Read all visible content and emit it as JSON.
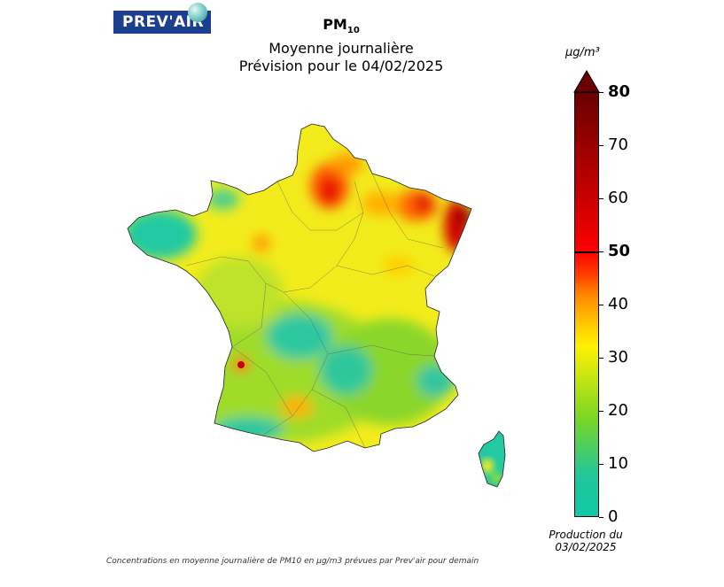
{
  "header": {
    "logo_text": "PREV'AIR",
    "pollutant": "PM",
    "pollutant_sub": "10",
    "subtitle": "Moyenne journalière",
    "forecast": "Prévision pour le 04/02/2025"
  },
  "legend": {
    "unit": "μg/m³",
    "ticks": [
      "0",
      "10",
      "20",
      "30",
      "40",
      "50",
      "60",
      "70",
      "80"
    ],
    "emphasized": [
      "50",
      "80"
    ],
    "range": [
      0,
      80
    ],
    "colors": {
      "low": "#11c8a8",
      "mid_low": "#7ad624",
      "mid": "#fff200",
      "mid_high": "#ff8a00",
      "high": "#ff0000",
      "very_high": "#6b0000"
    }
  },
  "production": {
    "line1": "Production du",
    "line2": "03/02/2025"
  },
  "footer": {
    "caption": "Concentrations en moyenne journalière de PM10 en μg/m3 prévues par Prev'air pour demain"
  }
}
